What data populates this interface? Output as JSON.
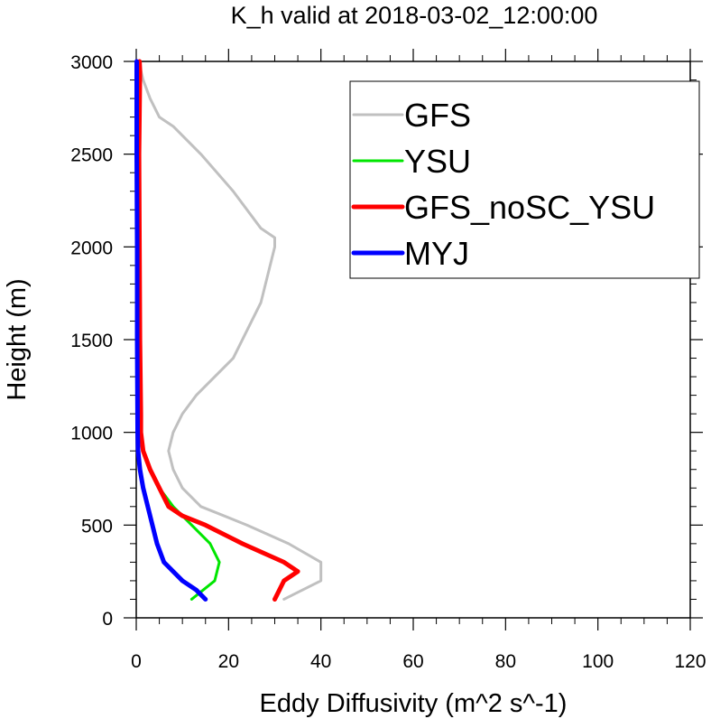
{
  "chart_data": {
    "type": "line",
    "title": "K_h valid at 2018-03-02_12:00:00",
    "xlabel": "Eddy Diffusivity (m^2 s^-1)",
    "ylabel": "Height (m)",
    "xlim": [
      0,
      120
    ],
    "ylim": [
      0,
      3000
    ],
    "x_ticks": [
      0,
      20,
      40,
      60,
      80,
      100,
      120
    ],
    "y_ticks": [
      0,
      500,
      1000,
      1500,
      2000,
      2500,
      3000
    ],
    "x_minor_step": 5,
    "y_minor_step": 100,
    "grid": false,
    "legend_position": "top-right",
    "series": [
      {
        "name": "GFS",
        "color": "#c0c0c0",
        "points": [
          [
            32,
            100
          ],
          [
            40,
            200
          ],
          [
            40,
            300
          ],
          [
            33,
            400
          ],
          [
            24,
            500
          ],
          [
            14,
            600
          ],
          [
            10,
            700
          ],
          [
            8,
            800
          ],
          [
            7,
            900
          ],
          [
            8,
            1000
          ],
          [
            10,
            1100
          ],
          [
            13,
            1200
          ],
          [
            17,
            1300
          ],
          [
            21,
            1400
          ],
          [
            25,
            1600
          ],
          [
            27,
            1700
          ],
          [
            29,
            1900
          ],
          [
            30,
            2000
          ],
          [
            30,
            2050
          ],
          [
            27,
            2100
          ],
          [
            21,
            2300
          ],
          [
            14,
            2500
          ],
          [
            8,
            2650
          ],
          [
            5,
            2700
          ],
          [
            3,
            2800
          ],
          [
            1.5,
            2900
          ],
          [
            0.5,
            3000
          ]
        ]
      },
      {
        "name": "YSU",
        "color": "#00e600",
        "points": [
          [
            12,
            100
          ],
          [
            17,
            200
          ],
          [
            18,
            300
          ],
          [
            16,
            400
          ],
          [
            12,
            500
          ],
          [
            8,
            600
          ],
          [
            5,
            700
          ],
          [
            3,
            800
          ],
          [
            1.5,
            900
          ],
          [
            1,
            1000
          ],
          [
            1,
            1100
          ],
          [
            0.8,
            1500
          ],
          [
            0.6,
            2000
          ],
          [
            0.4,
            2500
          ],
          [
            0.3,
            3000
          ]
        ]
      },
      {
        "name": "GFS_noSC_YSU",
        "color": "#ff0000",
        "points": [
          [
            30,
            100
          ],
          [
            32,
            200
          ],
          [
            35,
            250
          ],
          [
            32,
            300
          ],
          [
            23,
            400
          ],
          [
            15,
            500
          ],
          [
            10,
            550
          ],
          [
            7,
            600
          ],
          [
            5,
            700
          ],
          [
            3,
            800
          ],
          [
            1.5,
            900
          ],
          [
            1,
            1000
          ],
          [
            1,
            1100
          ],
          [
            0.8,
            1500
          ],
          [
            0.7,
            2000
          ],
          [
            0.6,
            2500
          ],
          [
            0.8,
            2950
          ],
          [
            0.7,
            3000
          ]
        ]
      },
      {
        "name": "MYJ",
        "color": "#0000ff",
        "points": [
          [
            15,
            100
          ],
          [
            13,
            150
          ],
          [
            10,
            200
          ],
          [
            6,
            300
          ],
          [
            4.5,
            400
          ],
          [
            2.5,
            600
          ],
          [
            1.5,
            700
          ],
          [
            0.8,
            800
          ],
          [
            0.4,
            900
          ],
          [
            0.3,
            1000
          ],
          [
            0.2,
            1500
          ],
          [
            0.2,
            2000
          ],
          [
            0.1,
            2500
          ],
          [
            0.1,
            3000
          ]
        ]
      }
    ]
  }
}
